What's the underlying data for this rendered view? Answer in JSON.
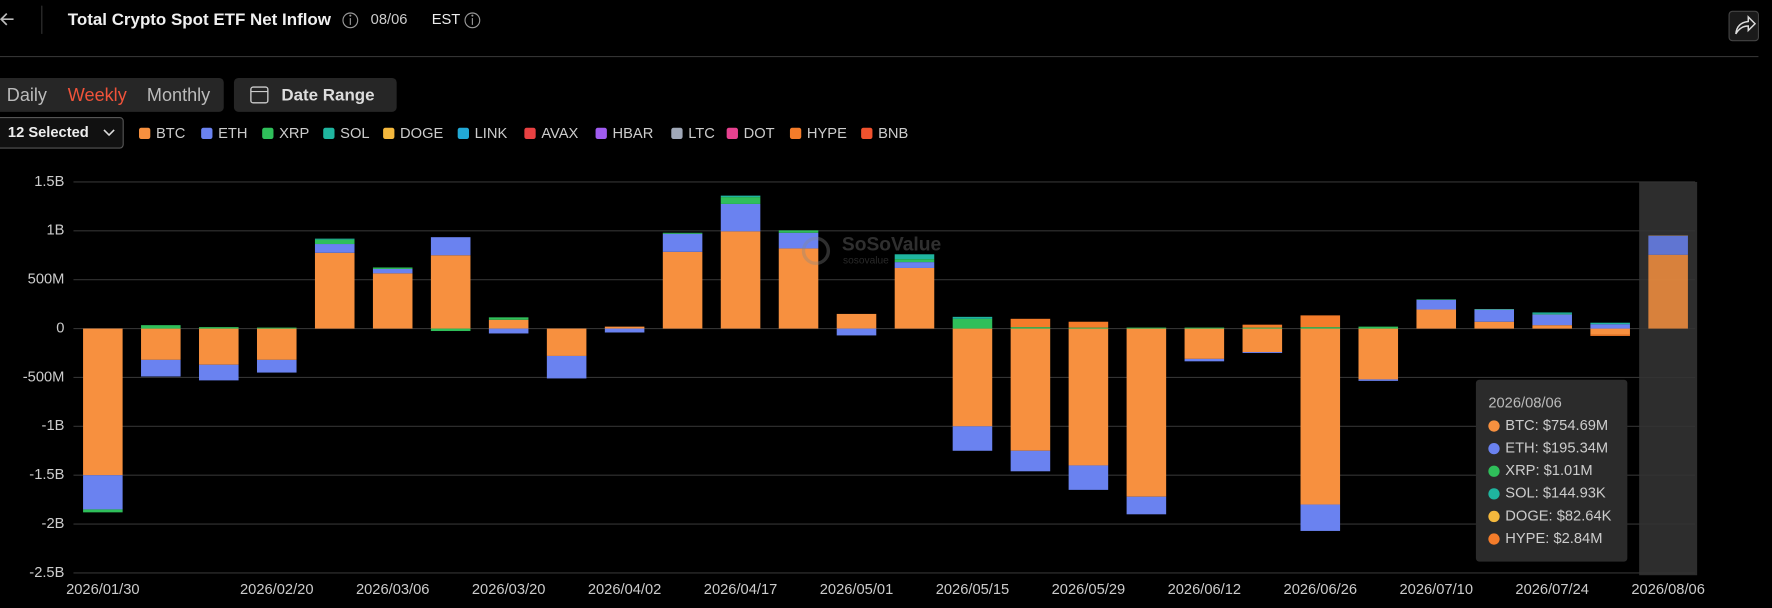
{
  "header": {
    "title": "Total Crypto Spot ETF Net Inflow",
    "date": "08/06",
    "timezone": "EST"
  },
  "tabs": {
    "items": [
      "Daily",
      "Weekly",
      "Monthly"
    ],
    "active": 1,
    "date_range": "Date Range",
    "selector": "12 Selected"
  },
  "watermark": {
    "brand": "SoSoValue",
    "sub": "sosovalue"
  },
  "chart_data": {
    "type": "stacked_bar",
    "categories": [
      "2026/01/30",
      null,
      null,
      "2026/02/20",
      null,
      "2026/03/06",
      null,
      "2026/03/20",
      null,
      "2026/04/02",
      null,
      "2026/04/17",
      null,
      "2026/05/01",
      null,
      "2026/05/15",
      null,
      "2026/05/29",
      null,
      "2026/06/12",
      null,
      "2026/06/26",
      null,
      "2026/07/10",
      null,
      "2026/07/24",
      null,
      "2026/08/06"
    ],
    "ylim": [
      -2500,
      1500
    ],
    "yticks": [
      {
        "value": 1500,
        "label": "1.5B"
      },
      {
        "value": 1000,
        "label": "1B"
      },
      {
        "value": 500,
        "label": "500M"
      },
      0,
      {
        "value": -500,
        "label": "-500M"
      },
      {
        "value": -1000,
        "label": "-1B"
      },
      {
        "value": -1500,
        "label": "-1.5B"
      },
      {
        "value": -2000,
        "label": "-2B"
      },
      {
        "value": -2500,
        "label": "-2.5B"
      }
    ],
    "grid": true,
    "highlight_index": 27,
    "series": [
      {
        "name": "BTC",
        "color": "#f7903f",
        "values": [
          -1500,
          -320,
          -370,
          -320,
          775,
          565,
          750,
          90,
          -280,
          20,
          785,
          995,
          820,
          150,
          620,
          -1000,
          -1250,
          -1400,
          -1720,
          -310,
          -240,
          -1800,
          -520,
          195,
          70,
          35,
          -60,
          754.69
        ]
      },
      {
        "name": "ETH",
        "color": "#6a82f0",
        "values": [
          -350,
          -170,
          -160,
          -130,
          90,
          45,
          185,
          -50,
          -230,
          -40,
          185,
          280,
          160,
          -70,
          60,
          -250,
          -210,
          -250,
          -180,
          -25,
          -10,
          -270,
          -15,
          100,
          125,
          110,
          45,
          195.34
        ]
      },
      {
        "name": "XRP",
        "color": "#2fbf5a",
        "values": [
          -30,
          35,
          15,
          10,
          45,
          15,
          -25,
          25,
          0,
          0,
          10,
          70,
          25,
          0,
          30,
          100,
          15,
          10,
          10,
          10,
          10,
          15,
          20,
          5,
          5,
          5,
          0,
          1.01
        ]
      },
      {
        "name": "SOL",
        "color": "#1fb59f",
        "values": [
          0,
          0,
          0,
          0,
          10,
          0,
          0,
          0,
          0,
          0,
          0,
          15,
          0,
          0,
          50,
          20,
          0,
          0,
          0,
          0,
          0,
          0,
          0,
          0,
          0,
          15,
          15,
          0.14493
        ]
      },
      {
        "name": "DOGE",
        "color": "#f4b83d",
        "values": [
          0,
          0,
          0,
          0,
          0,
          0,
          0,
          0,
          0,
          0,
          0,
          0,
          0,
          0,
          0,
          0,
          0,
          0,
          0,
          0,
          0,
          0,
          0,
          0,
          0,
          0,
          0,
          0.08264
        ]
      },
      {
        "name": "LINK",
        "color": "#22a9d6",
        "values": [
          0,
          0,
          0,
          0,
          0,
          0,
          0,
          0,
          0,
          0,
          0,
          0,
          0,
          0,
          0,
          0,
          0,
          0,
          0,
          0,
          0,
          0,
          0,
          0,
          0,
          0,
          0,
          0
        ]
      },
      {
        "name": "AVAX",
        "color": "#e84142",
        "values": [
          0,
          0,
          0,
          0,
          0,
          0,
          0,
          0,
          0,
          0,
          0,
          0,
          0,
          0,
          0,
          0,
          0,
          0,
          0,
          0,
          0,
          0,
          0,
          0,
          0,
          0,
          0,
          0
        ]
      },
      {
        "name": "HBAR",
        "color": "#a05cf0",
        "values": [
          0,
          0,
          0,
          0,
          0,
          0,
          0,
          0,
          0,
          0,
          0,
          0,
          0,
          0,
          0,
          0,
          0,
          0,
          0,
          0,
          0,
          0,
          0,
          0,
          0,
          0,
          0,
          0
        ]
      },
      {
        "name": "LTC",
        "color": "#a0a8b8",
        "values": [
          0,
          0,
          0,
          0,
          0,
          0,
          0,
          0,
          0,
          0,
          0,
          0,
          0,
          0,
          0,
          0,
          0,
          0,
          0,
          0,
          0,
          0,
          0,
          0,
          0,
          0,
          0,
          0
        ]
      },
      {
        "name": "DOT",
        "color": "#e6418f",
        "values": [
          0,
          0,
          0,
          0,
          0,
          0,
          0,
          0,
          0,
          0,
          0,
          0,
          0,
          0,
          0,
          0,
          0,
          0,
          0,
          0,
          0,
          0,
          0,
          0,
          0,
          0,
          0,
          0
        ]
      },
      {
        "name": "HYPE",
        "color": "#f47c2a",
        "values": [
          0,
          0,
          0,
          0,
          0,
          0,
          0,
          0,
          0,
          0,
          0,
          0,
          0,
          0,
          0,
          0,
          85,
          60,
          0,
          0,
          30,
          120,
          0,
          0,
          0,
          0,
          -15,
          2.84
        ]
      },
      {
        "name": "BNB",
        "color": "#f0522e",
        "values": [
          0,
          0,
          0,
          0,
          0,
          0,
          0,
          0,
          0,
          0,
          0,
          0,
          0,
          0,
          0,
          0,
          0,
          0,
          0,
          0,
          0,
          0,
          0,
          0,
          0,
          0,
          0,
          0
        ]
      }
    ],
    "tooltip": {
      "title": "2026/08/06",
      "items": [
        "BTC: $754.69M",
        "ETH: $195.34M",
        "XRP: $1.01M",
        "SOL: $144.93K",
        "DOGE: $82.64K",
        "HYPE: $2.84M"
      ]
    }
  }
}
